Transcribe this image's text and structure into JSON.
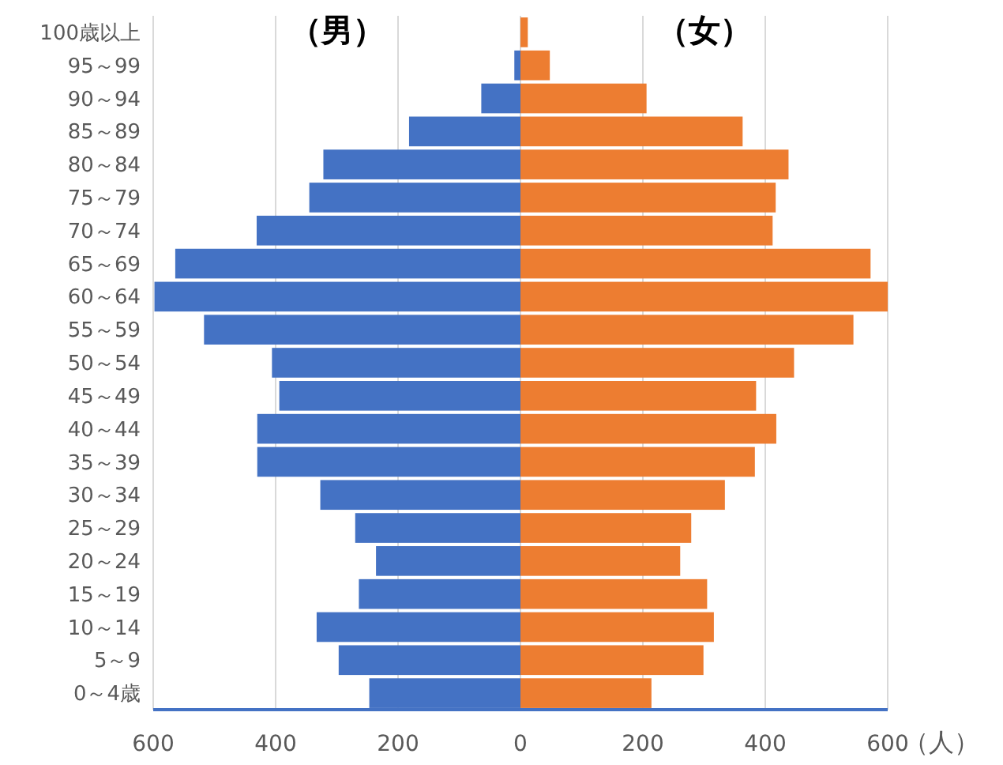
{
  "chart_data": {
    "type": "bar",
    "orientation": "horizontal",
    "stacked": true,
    "xlabel": "（人）",
    "categories": [
      "100歳以上",
      "95～99",
      "90～94",
      "85～89",
      "80～84",
      "75～79",
      "70～74",
      "65～69",
      "60～64",
      "55～59",
      "50～54",
      "45～49",
      "40～44",
      "35～39",
      "30～34",
      "25～29",
      "20～24",
      "15～19",
      "10～14",
      "5～9",
      "0～4歳"
    ],
    "series": [
      {
        "name": "（男）",
        "color": "#4472c4",
        "values": [
          0,
          -10,
          -64,
          -182,
          -322,
          -345,
          -431,
          -564,
          -598,
          -517,
          -406,
          -394,
          -430,
          -430,
          -327,
          -270,
          -236,
          -264,
          -333,
          -297,
          -247
        ]
      },
      {
        "name": "（女）",
        "color": "#ed7d31",
        "values": [
          12,
          48,
          206,
          363,
          438,
          417,
          412,
          572,
          600,
          544,
          447,
          385,
          418,
          383,
          334,
          279,
          261,
          305,
          316,
          299,
          214
        ]
      }
    ],
    "xlim": [
      -600,
      600
    ],
    "xticks": [
      {
        "value": -600,
        "label": "600"
      },
      {
        "value": -400,
        "label": "400"
      },
      {
        "value": -200,
        "label": "200"
      },
      0,
      200,
      400,
      600
    ],
    "grid": "x"
  }
}
